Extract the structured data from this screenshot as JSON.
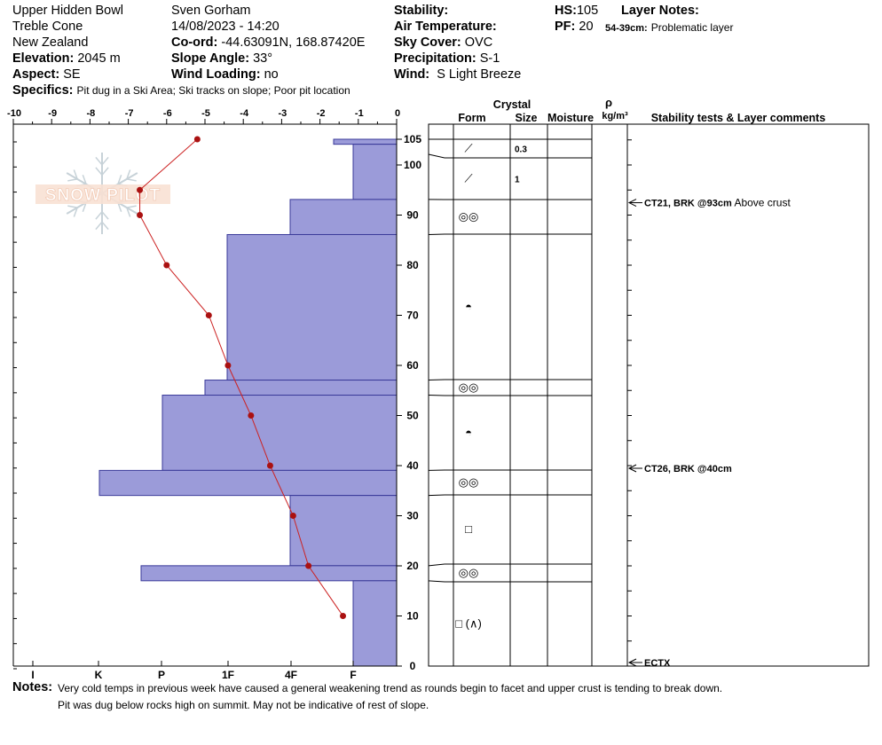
{
  "header": {
    "location": "Upper Hidden Bowl",
    "area": "Treble Cone",
    "region": "New Zealand",
    "elevation_label": "Elevation:",
    "elevation_value": "2045 m",
    "aspect_label": "Aspect:",
    "aspect_value": "SE",
    "specifics_label": "Specifics:",
    "specifics_value": "Pit dug in a Ski Area; Ski tracks on slope; Poor pit location",
    "observer": "Sven Gorham",
    "datetime": "14/08/2023 - 14:20",
    "coord_label": "Co-ord:",
    "coord_value": "-44.63091N, 168.87420E",
    "slope_label": "Slope Angle:",
    "slope_value": "33°",
    "wind_loading_label": "Wind Loading:",
    "wind_loading_value": "no",
    "stability_label": "Stability:",
    "stability_value": "",
    "air_temp_label": "Air Temperature:",
    "air_temp_value": "",
    "sky_label": "Sky Cover:",
    "sky_value": "OVC",
    "precip_label": "Precipitation:",
    "precip_value": "S-1",
    "wind_label": "Wind:",
    "wind_value": "S Light Breeze",
    "hs_label": "HS:",
    "hs_value": "105",
    "pf_label": "PF:",
    "pf_value": "20",
    "layer_notes_label": "Layer Notes:",
    "layer_note_range": "54-39cm:",
    "layer_note_text": "Problematic layer"
  },
  "watermark": "SNOW PILOT",
  "notes": {
    "label": "Notes:",
    "line1": "Very cold temps in previous week have caused a general weakening trend as rounds begin to facet and upper crust is tending to break down.",
    "line2": "Pit was dug below rocks high on summit. May not be indicative of rest of slope."
  },
  "table_headers": {
    "crystal": "Crystal",
    "form": "Form",
    "size": "Size",
    "moisture": "Moisture",
    "rho": "ρ",
    "density_unit": "kg/m³",
    "stability": "Stability tests & Layer comments"
  },
  "chart_data": {
    "type": "line",
    "temp_axis": {
      "min": -10,
      "max": 0,
      "ticks": [
        "-10",
        "-9",
        "-8",
        "-7",
        "-6",
        "-5",
        "-4",
        "-3",
        "-2",
        "-1",
        "0"
      ]
    },
    "height_axis": {
      "min": 0,
      "max": 105,
      "ticks": [
        "105",
        "100",
        "90",
        "80",
        "70",
        "60",
        "50",
        "40",
        "30",
        "20",
        "10",
        "0"
      ]
    },
    "hardness_axis": {
      "labels": [
        "I",
        "K",
        "P",
        "1F",
        "4F",
        "F"
      ]
    },
    "temperature_profile": [
      {
        "height": 105,
        "temp": -5.2
      },
      {
        "height": 95,
        "temp": -6.7
      },
      {
        "height": 90,
        "temp": -6.7
      },
      {
        "height": 80,
        "temp": -6.0
      },
      {
        "height": 70,
        "temp": -4.9
      },
      {
        "height": 60,
        "temp": -4.4
      },
      {
        "height": 50,
        "temp": -3.8
      },
      {
        "height": 40,
        "temp": -3.3
      },
      {
        "height": 30,
        "temp": -2.7
      },
      {
        "height": 20,
        "temp": -2.3
      },
      {
        "height": 10,
        "temp": -1.4
      }
    ],
    "hardness_profile": [
      {
        "top": 105,
        "bottom": 104,
        "hardness": "F+"
      },
      {
        "top": 104,
        "bottom": 93,
        "hardness": "F"
      },
      {
        "top": 93,
        "bottom": 86,
        "hardness": "4F"
      },
      {
        "top": 86,
        "bottom": 57,
        "hardness": "1F"
      },
      {
        "top": 57,
        "bottom": 54,
        "hardness": "1F+"
      },
      {
        "top": 54,
        "bottom": 39,
        "hardness": "P"
      },
      {
        "top": 39,
        "bottom": 34,
        "hardness": "K"
      },
      {
        "top": 34,
        "bottom": 20,
        "hardness": "4F"
      },
      {
        "top": 20,
        "bottom": 17,
        "hardness": "P-"
      },
      {
        "top": 17,
        "bottom": 0,
        "hardness": "F"
      }
    ],
    "layers": [
      {
        "top": 105,
        "bottom": 102,
        "form": "dec",
        "size": "0.3"
      },
      {
        "top": 102,
        "bottom": 93,
        "form": "dec",
        "size": "1"
      },
      {
        "top": 93,
        "bottom": 86,
        "form": "mf",
        "size": ""
      },
      {
        "top": 86,
        "bottom": 57,
        "form": "rounding",
        "size": ""
      },
      {
        "top": 57,
        "bottom": 54,
        "form": "mf",
        "size": ""
      },
      {
        "top": 54,
        "bottom": 39,
        "form": "rounding",
        "size": ""
      },
      {
        "top": 39,
        "bottom": 34,
        "form": "mf",
        "size": ""
      },
      {
        "top": 34,
        "bottom": 20,
        "form": "facet",
        "size": ""
      },
      {
        "top": 20,
        "bottom": 17,
        "form": "mf",
        "size": ""
      },
      {
        "top": 17,
        "bottom": 0,
        "form": "facet-depth",
        "size": ""
      }
    ],
    "form_symbols": {
      "dec": "⟋",
      "mf": "◎◎",
      "rounding": "◓",
      "facet": "□",
      "facet-depth": "□ (∧)"
    },
    "stability_tests": [
      {
        "height": 93,
        "label": "CT21, BRK @93cm",
        "comment": "Above crust"
      },
      {
        "height": 40,
        "label": "CT26, BRK @40cm",
        "comment": ""
      },
      {
        "height": 1,
        "label": "ECTX",
        "comment": ""
      }
    ],
    "colors": {
      "hardness_fill": "#9b9bd9",
      "hardness_stroke": "#3a3a99",
      "temp_line": "#cc2222",
      "temp_point": "#aa1111"
    }
  }
}
